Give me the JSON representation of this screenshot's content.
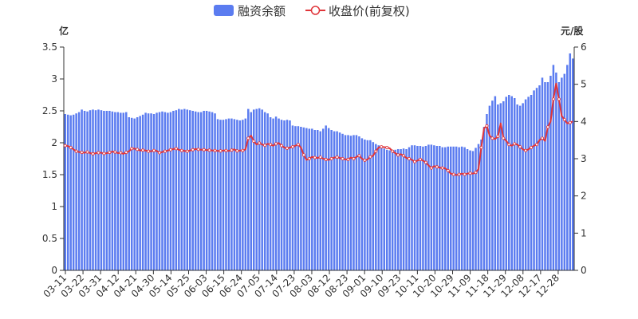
{
  "legend": {
    "margin_label": "融资余额",
    "price_label": "收盘价(前复权)"
  },
  "colors": {
    "bars": "#5B7CF0",
    "line": "#E0353A",
    "axis": "#333333",
    "grid": "#E0E0E0"
  },
  "chart_data": {
    "type": "bar",
    "left_axis": {
      "unit": "亿",
      "min": 0,
      "max": 3.5,
      "ticks": [
        "0",
        "0.5",
        "1",
        "1.5",
        "2",
        "2.5",
        "3",
        "3.5"
      ]
    },
    "right_axis": {
      "unit": "元/股",
      "min": 0,
      "max": 6,
      "ticks": [
        "0",
        "1",
        "2",
        "3",
        "4",
        "5",
        "6"
      ]
    },
    "x_tick_labels": [
      "03-11",
      "03-22",
      "03-31",
      "04-12",
      "04-21",
      "04-30",
      "05-14",
      "05-25",
      "06-03",
      "06-15",
      "06-24",
      "07-05",
      "07-14",
      "07-23",
      "08-03",
      "08-12",
      "08-23",
      "09-01",
      "09-10",
      "09-23",
      "10-11",
      "10-20",
      "10-29",
      "11-09",
      "11-18",
      "11-29",
      "12-08",
      "12-17",
      "12-28"
    ],
    "grid": false,
    "legend_position": "top-center",
    "series": [
      {
        "name": "融资余额",
        "type": "bar",
        "axis": "left",
        "values": [
          2.45,
          2.44,
          2.43,
          2.44,
          2.46,
          2.48,
          2.52,
          2.5,
          2.49,
          2.51,
          2.52,
          2.51,
          2.52,
          2.51,
          2.5,
          2.5,
          2.5,
          2.49,
          2.48,
          2.48,
          2.47,
          2.47,
          2.48,
          2.4,
          2.39,
          2.38,
          2.4,
          2.42,
          2.44,
          2.47,
          2.46,
          2.46,
          2.45,
          2.47,
          2.48,
          2.49,
          2.48,
          2.47,
          2.48,
          2.5,
          2.51,
          2.53,
          2.52,
          2.53,
          2.52,
          2.51,
          2.5,
          2.49,
          2.48,
          2.48,
          2.5,
          2.5,
          2.49,
          2.48,
          2.46,
          2.37,
          2.36,
          2.36,
          2.37,
          2.38,
          2.38,
          2.37,
          2.36,
          2.35,
          2.36,
          2.38,
          2.53,
          2.48,
          2.52,
          2.53,
          2.54,
          2.52,
          2.48,
          2.46,
          2.4,
          2.38,
          2.41,
          2.38,
          2.36,
          2.35,
          2.36,
          2.35,
          2.27,
          2.26,
          2.26,
          2.25,
          2.24,
          2.23,
          2.22,
          2.22,
          2.2,
          2.2,
          2.18,
          2.22,
          2.27,
          2.23,
          2.2,
          2.18,
          2.18,
          2.16,
          2.14,
          2.12,
          2.12,
          2.11,
          2.12,
          2.12,
          2.1,
          2.07,
          2.05,
          2.04,
          2.04,
          2.01,
          1.98,
          1.96,
          1.93,
          1.91,
          1.89,
          1.88,
          1.88,
          1.89,
          1.9,
          1.9,
          1.91,
          1.9,
          1.93,
          1.96,
          1.96,
          1.95,
          1.95,
          1.94,
          1.95,
          1.97,
          1.97,
          1.96,
          1.95,
          1.95,
          1.93,
          1.93,
          1.94,
          1.94,
          1.94,
          1.94,
          1.93,
          1.94,
          1.93,
          1.9,
          1.88,
          1.87,
          1.92,
          1.98,
          2.05,
          2.25,
          2.45,
          2.58,
          2.66,
          2.73,
          2.6,
          2.62,
          2.65,
          2.72,
          2.75,
          2.73,
          2.7,
          2.6,
          2.58,
          2.62,
          2.68,
          2.72,
          2.75,
          2.82,
          2.86,
          2.9,
          3.02,
          2.95,
          2.95,
          3.05,
          3.22,
          3.1,
          2.95,
          3.02,
          3.08,
          3.22,
          3.4,
          3.32
        ]
      },
      {
        "name": "收盘价(前复权)",
        "type": "line",
        "axis": "right",
        "values": [
          3.35,
          3.34,
          3.3,
          3.25,
          3.2,
          3.18,
          3.17,
          3.16,
          3.18,
          3.15,
          3.13,
          3.15,
          3.16,
          3.16,
          3.14,
          3.15,
          3.17,
          3.19,
          3.18,
          3.15,
          3.16,
          3.13,
          3.17,
          3.2,
          3.27,
          3.27,
          3.25,
          3.22,
          3.23,
          3.22,
          3.2,
          3.2,
          3.22,
          3.21,
          3.16,
          3.18,
          3.2,
          3.22,
          3.24,
          3.26,
          3.27,
          3.24,
          3.22,
          3.21,
          3.2,
          3.22,
          3.24,
          3.26,
          3.25,
          3.24,
          3.24,
          3.23,
          3.23,
          3.22,
          3.22,
          3.21,
          3.21,
          3.22,
          3.22,
          3.21,
          3.23,
          3.25,
          3.21,
          3.22,
          3.22,
          3.25,
          3.55,
          3.62,
          3.47,
          3.38,
          3.42,
          3.38,
          3.36,
          3.4,
          3.38,
          3.35,
          3.4,
          3.42,
          3.35,
          3.3,
          3.28,
          3.3,
          3.32,
          3.35,
          3.38,
          3.3,
          3.1,
          2.97,
          3.0,
          3.05,
          3.03,
          3.02,
          3.04,
          3.0,
          2.98,
          2.97,
          3.0,
          3.03,
          3.04,
          3.02,
          3.0,
          2.98,
          2.98,
          3.03,
          3.0,
          3.05,
          3.08,
          3.0,
          2.96,
          2.98,
          3.05,
          3.08,
          3.2,
          3.3,
          3.32,
          3.31,
          3.3,
          3.28,
          3.2,
          3.15,
          3.1,
          3.12,
          3.08,
          3.02,
          3.0,
          2.97,
          2.92,
          2.95,
          2.98,
          2.95,
          2.9,
          2.82,
          2.75,
          2.8,
          2.78,
          2.76,
          2.75,
          2.74,
          2.68,
          2.6,
          2.58,
          2.56,
          2.58,
          2.6,
          2.58,
          2.6,
          2.61,
          2.6,
          2.63,
          2.72,
          3.3,
          3.82,
          3.88,
          3.62,
          3.55,
          3.53,
          3.6,
          3.95,
          3.55,
          3.48,
          3.38,
          3.35,
          3.4,
          3.38,
          3.32,
          3.25,
          3.22,
          3.25,
          3.3,
          3.35,
          3.38,
          3.5,
          3.55,
          3.48,
          3.85,
          4.0,
          4.6,
          5.02,
          4.6,
          4.15,
          4.05,
          3.95,
          3.97,
          4.0
        ]
      }
    ]
  }
}
